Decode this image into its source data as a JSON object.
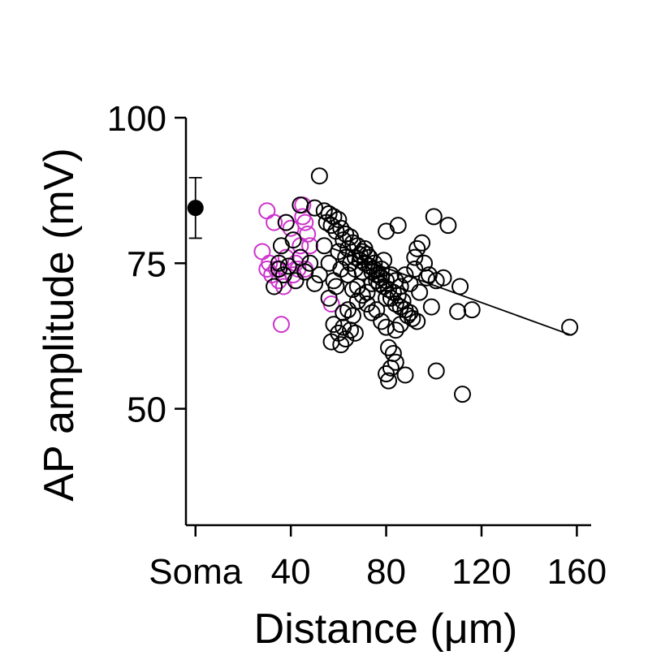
{
  "chart_data": {
    "type": "scatter",
    "xlabel": "Distance (μm)",
    "ylabel": "AP amplitude (mV)",
    "xlim": [
      -4,
      166
    ],
    "ylim": [
      30,
      100
    ],
    "xticks": [
      {
        "value": 0,
        "label": "Soma"
      },
      {
        "value": 40,
        "label": "40"
      },
      {
        "value": 80,
        "label": "80"
      },
      {
        "value": 120,
        "label": "120"
      },
      {
        "value": 160,
        "label": "160"
      }
    ],
    "yticks": [
      {
        "value": 100,
        "label": "100"
      },
      {
        "value": 75,
        "label": "75"
      },
      {
        "value": 50,
        "label": "50"
      }
    ],
    "grid": false,
    "legend": "none",
    "soma": {
      "x": 0,
      "mean": 84.5,
      "err_low": 79.3,
      "err_high": 89.7,
      "color": "#000000"
    },
    "series": [
      {
        "color": "#cc33cc",
        "points": [
          [
            30,
            84
          ],
          [
            28,
            77
          ],
          [
            30,
            74
          ],
          [
            33,
            82
          ],
          [
            35,
            72
          ],
          [
            32,
            73
          ],
          [
            34,
            74
          ],
          [
            37,
            71
          ],
          [
            38,
            82
          ],
          [
            40,
            81
          ],
          [
            41,
            73
          ],
          [
            43,
            74
          ],
          [
            44,
            76
          ],
          [
            45,
            85
          ],
          [
            45,
            83
          ],
          [
            46,
            82
          ],
          [
            47,
            80
          ],
          [
            44,
            78
          ],
          [
            48,
            78
          ],
          [
            42,
            75
          ],
          [
            38,
            76
          ],
          [
            36,
            64.5
          ],
          [
            57,
            68
          ],
          [
            31,
            75
          ],
          [
            46,
            74
          ]
        ]
      },
      {
        "color": "#000000",
        "points": [
          [
            52,
            90
          ],
          [
            44,
            85
          ],
          [
            50,
            84.5
          ],
          [
            54,
            84
          ],
          [
            56,
            83.5
          ],
          [
            58,
            83
          ],
          [
            60,
            82.5
          ],
          [
            55,
            82
          ],
          [
            57,
            81.5
          ],
          [
            61,
            81
          ],
          [
            59,
            80.5
          ],
          [
            63,
            80
          ],
          [
            65,
            79.5
          ],
          [
            62,
            79
          ],
          [
            66,
            78.5
          ],
          [
            68,
            78
          ],
          [
            64,
            77.5
          ],
          [
            70,
            77
          ],
          [
            72,
            76.5
          ],
          [
            67,
            76
          ],
          [
            69,
            75.5
          ],
          [
            71,
            75
          ],
          [
            73,
            74.5
          ],
          [
            75,
            74
          ],
          [
            74,
            73.5
          ],
          [
            76,
            73
          ],
          [
            78,
            72.5
          ],
          [
            80,
            72
          ],
          [
            77,
            71.5
          ],
          [
            79,
            71
          ],
          [
            81,
            70.5
          ],
          [
            83,
            70
          ],
          [
            85,
            69.5
          ],
          [
            82,
            69
          ],
          [
            87,
            68.5
          ],
          [
            84,
            68
          ],
          [
            86,
            67.5
          ],
          [
            88,
            67
          ],
          [
            90,
            66.5
          ],
          [
            89,
            66
          ],
          [
            91,
            65.5
          ],
          [
            93,
            65
          ],
          [
            58,
            64.5
          ],
          [
            62,
            64
          ],
          [
            65,
            63.5
          ],
          [
            60,
            63
          ],
          [
            67,
            63
          ],
          [
            63,
            62
          ],
          [
            57,
            61.5
          ],
          [
            61,
            61
          ],
          [
            81,
            60.5
          ],
          [
            83,
            59.5
          ],
          [
            84,
            58
          ],
          [
            82,
            57
          ],
          [
            80,
            56
          ],
          [
            88,
            55.8
          ],
          [
            81,
            54.8
          ],
          [
            101,
            56.5
          ],
          [
            112,
            52.5
          ],
          [
            116,
            67
          ],
          [
            110,
            66.7
          ],
          [
            111,
            71
          ],
          [
            106,
            81.5
          ],
          [
            100,
            83
          ],
          [
            95,
            78.5
          ],
          [
            93,
            77.5
          ],
          [
            92,
            76
          ],
          [
            96,
            75
          ],
          [
            98,
            73
          ],
          [
            97,
            72.5
          ],
          [
            101,
            72
          ],
          [
            104,
            72.5
          ],
          [
            99,
            67.5
          ],
          [
            85,
            81.5
          ],
          [
            80,
            80.5
          ],
          [
            38,
            82
          ],
          [
            36,
            78
          ],
          [
            41,
            79
          ],
          [
            35,
            74
          ],
          [
            33,
            71
          ],
          [
            35,
            75
          ],
          [
            37,
            73
          ],
          [
            39,
            74.5
          ],
          [
            42,
            72
          ],
          [
            44,
            76
          ],
          [
            46,
            73.5
          ],
          [
            48,
            75
          ],
          [
            50,
            71.5
          ],
          [
            52,
            73
          ],
          [
            54,
            78
          ],
          [
            56,
            75
          ],
          [
            58,
            72
          ],
          [
            60,
            77
          ],
          [
            64,
            73
          ],
          [
            66,
            70.5
          ],
          [
            68,
            71
          ],
          [
            70,
            73.5
          ],
          [
            72,
            70
          ],
          [
            74,
            71.5
          ],
          [
            76,
            72
          ],
          [
            78,
            74
          ],
          [
            80,
            69
          ],
          [
            82,
            73
          ],
          [
            84,
            72
          ],
          [
            86,
            71
          ],
          [
            88,
            73
          ],
          [
            90,
            71.5
          ],
          [
            92,
            74
          ],
          [
            94,
            70
          ],
          [
            62,
            66.5
          ],
          [
            64,
            67
          ],
          [
            66,
            66
          ],
          [
            68,
            68.5
          ],
          [
            70,
            69.5
          ],
          [
            72,
            68
          ],
          [
            74,
            66.5
          ],
          [
            76,
            67
          ],
          [
            78,
            65
          ],
          [
            80,
            64
          ],
          [
            84,
            63.5
          ],
          [
            86,
            64.5
          ],
          [
            56,
            69
          ],
          [
            59,
            71
          ],
          [
            61,
            74
          ],
          [
            63,
            76
          ],
          [
            65,
            75
          ],
          [
            67,
            74
          ],
          [
            69,
            76.5
          ],
          [
            71,
            77.5
          ],
          [
            73,
            76
          ],
          [
            75,
            75
          ],
          [
            77,
            73
          ],
          [
            79,
            75.5
          ],
          [
            157,
            64
          ]
        ]
      }
    ],
    "trendline": {
      "x1": 57,
      "y1": 77.6,
      "x2": 158,
      "y2": 62.6,
      "color": "#000000"
    }
  }
}
